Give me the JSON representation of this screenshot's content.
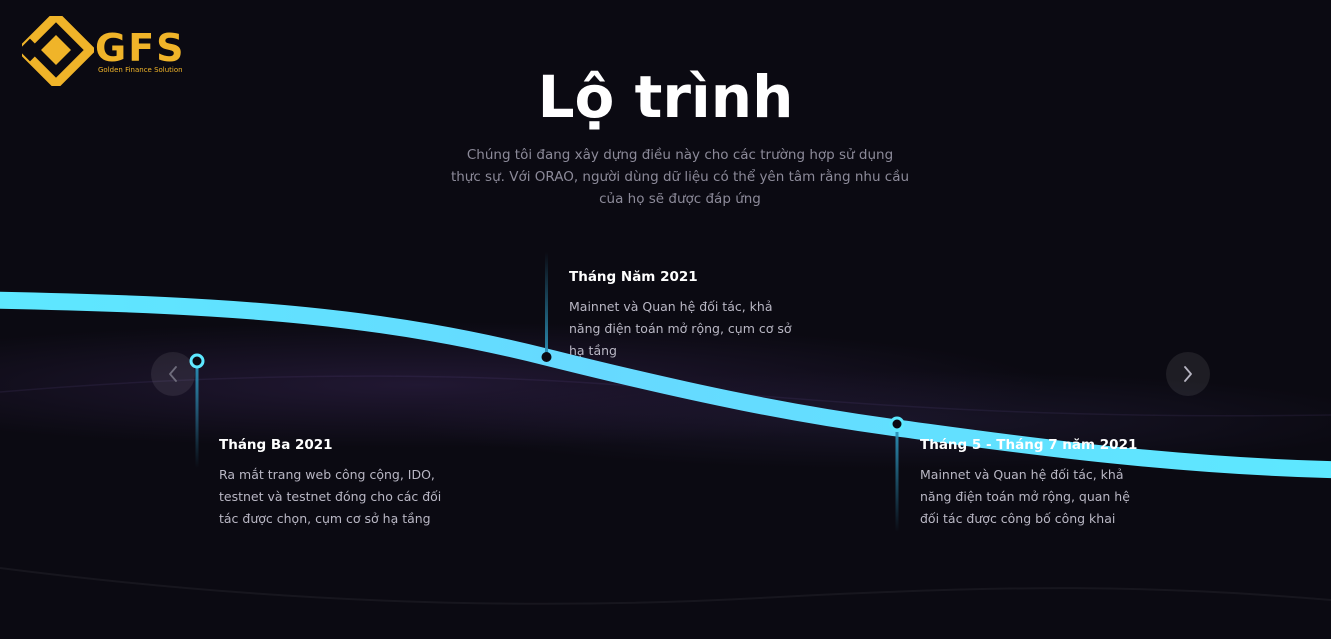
{
  "brand": {
    "logo_text": "GFS",
    "tagline": "Golden Finance Solution",
    "color": "#f0b429"
  },
  "roadmap": {
    "title": "Lộ trình",
    "subtitle": "Chúng tôi đang xây dựng điều này cho các trường hợp sử dụng thực sự. Với ORAO, người dùng dữ liệu có thể yên tâm rằng nhu cầu của họ sẽ được đáp ứng",
    "accent_color": "#5de8ff",
    "milestones": [
      {
        "date": "Tháng Ba 2021",
        "description": "Ra mắt trang web công cộng, IDO, testnet và testnet đóng cho các đối tác được chọn, cụm cơ sở hạ tầng"
      },
      {
        "date": "Tháng Năm 2021",
        "description": "Mainnet và Quan hệ đối tác, khả năng điện toán mở rộng, cụm cơ sở hạ tầng"
      },
      {
        "date": "Tháng 5 - Tháng 7 năm 2021",
        "description": "Mainnet và Quan hệ đối tác, khả năng điện toán mở rộng, quan hệ đối tác được công bố công khai"
      }
    ]
  },
  "navigation": {
    "prev_icon": "chevron-left-icon",
    "next_icon": "chevron-right-icon"
  }
}
